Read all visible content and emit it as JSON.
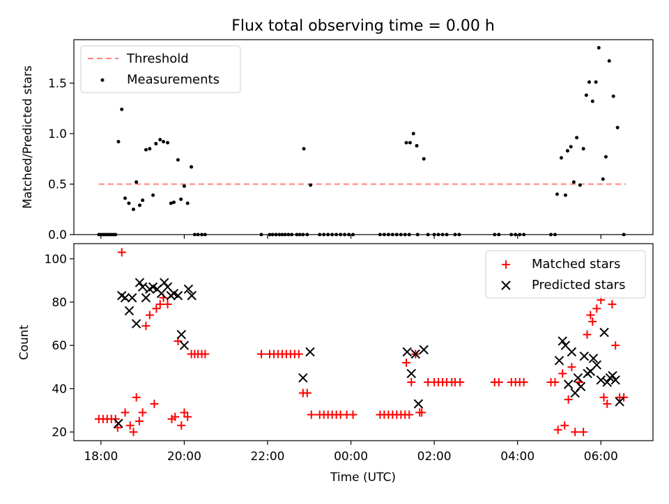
{
  "figure_title": "Flux total observing time = 0.00 h",
  "x_axis": {
    "label": "Time (UTC)",
    "range_hours": [
      17.35,
      31.25
    ],
    "tick_hours": [
      18,
      20,
      22,
      24,
      26,
      28,
      30
    ],
    "tick_labels": [
      "18:00",
      "20:00",
      "22:00",
      "00:00",
      "02:00",
      "04:00",
      "06:00"
    ]
  },
  "chart_data": [
    {
      "type": "scatter",
      "panel": "top",
      "ylabel": "Matched/Predicted stars",
      "ylim": [
        0,
        1.93
      ],
      "yticks": [
        0.0,
        0.5,
        1.0,
        1.5
      ],
      "ytick_labels": [
        "0.0",
        "0.5",
        "1.0",
        "1.5"
      ],
      "legend_position": "upper-left",
      "threshold": {
        "name": "Threshold",
        "value": 0.5,
        "x_range": [
          17.95,
          30.6
        ],
        "color": "#ff7f7f",
        "style": "dashed"
      },
      "series": [
        {
          "name": "Measurements",
          "color": "#000000",
          "points": [
            [
              17.95,
              0
            ],
            [
              18.0,
              0
            ],
            [
              18.05,
              0
            ],
            [
              18.1,
              0
            ],
            [
              18.15,
              0
            ],
            [
              18.2,
              0
            ],
            [
              18.25,
              0
            ],
            [
              18.3,
              0
            ],
            [
              18.35,
              0
            ],
            [
              18.42,
              0.92
            ],
            [
              18.5,
              1.24
            ],
            [
              18.58,
              0.36
            ],
            [
              18.67,
              0.31
            ],
            [
              18.78,
              0.25
            ],
            [
              18.85,
              0.52
            ],
            [
              18.93,
              0.29
            ],
            [
              19.0,
              0.34
            ],
            [
              19.08,
              0.84
            ],
            [
              19.17,
              0.85
            ],
            [
              19.25,
              0.39
            ],
            [
              19.32,
              0.9
            ],
            [
              19.42,
              0.94
            ],
            [
              19.5,
              0.92
            ],
            [
              19.6,
              0.91
            ],
            [
              19.68,
              0.31
            ],
            [
              19.75,
              0.32
            ],
            [
              19.85,
              0.74
            ],
            [
              19.92,
              0.35
            ],
            [
              20.0,
              0.48
            ],
            [
              20.08,
              0.31
            ],
            [
              20.17,
              0.67
            ],
            [
              20.25,
              0
            ],
            [
              20.33,
              0
            ],
            [
              20.42,
              0
            ],
            [
              20.5,
              0
            ],
            [
              21.85,
              0
            ],
            [
              22.05,
              0
            ],
            [
              22.12,
              0
            ],
            [
              22.2,
              0
            ],
            [
              22.28,
              0
            ],
            [
              22.35,
              0
            ],
            [
              22.42,
              0
            ],
            [
              22.5,
              0
            ],
            [
              22.58,
              0
            ],
            [
              22.7,
              0
            ],
            [
              22.77,
              0
            ],
            [
              22.85,
              0
            ],
            [
              22.87,
              0.85
            ],
            [
              22.95,
              0
            ],
            [
              23.03,
              0.49
            ],
            [
              23.25,
              0
            ],
            [
              23.35,
              0
            ],
            [
              23.45,
              0
            ],
            [
              23.55,
              0
            ],
            [
              23.65,
              0
            ],
            [
              23.75,
              0
            ],
            [
              23.85,
              0
            ],
            [
              23.95,
              0
            ],
            [
              24.05,
              0
            ],
            [
              24.7,
              0
            ],
            [
              24.8,
              0
            ],
            [
              24.9,
              0
            ],
            [
              25.0,
              0
            ],
            [
              25.1,
              0
            ],
            [
              25.2,
              0
            ],
            [
              25.3,
              0
            ],
            [
              25.4,
              0
            ],
            [
              25.33,
              0.91
            ],
            [
              25.42,
              0.91
            ],
            [
              25.5,
              1.0
            ],
            [
              25.58,
              0.88
            ],
            [
              25.6,
              0
            ],
            [
              25.75,
              0.75
            ],
            [
              25.85,
              0
            ],
            [
              26.0,
              0
            ],
            [
              26.1,
              0
            ],
            [
              26.2,
              0
            ],
            [
              26.3,
              0
            ],
            [
              26.5,
              0
            ],
            [
              26.6,
              0
            ],
            [
              27.45,
              0
            ],
            [
              27.55,
              0
            ],
            [
              27.85,
              0
            ],
            [
              27.95,
              0
            ],
            [
              28.05,
              0
            ],
            [
              28.15,
              0
            ],
            [
              28.8,
              0
            ],
            [
              28.9,
              0
            ],
            [
              28.95,
              0.4
            ],
            [
              29.05,
              0.76
            ],
            [
              29.15,
              0.39
            ],
            [
              29.2,
              0.83
            ],
            [
              29.28,
              0.87
            ],
            [
              29.35,
              0.52
            ],
            [
              29.42,
              0.96
            ],
            [
              29.5,
              0.49
            ],
            [
              29.58,
              0.85
            ],
            [
              29.65,
              1.38
            ],
            [
              29.72,
              1.51
            ],
            [
              29.8,
              1.32
            ],
            [
              29.88,
              1.51
            ],
            [
              29.95,
              1.85
            ],
            [
              30.05,
              0.55
            ],
            [
              30.12,
              0.77
            ],
            [
              30.2,
              1.72
            ],
            [
              30.3,
              1.37
            ],
            [
              30.4,
              1.06
            ],
            [
              30.55,
              0
            ]
          ]
        }
      ]
    },
    {
      "type": "scatter",
      "panel": "bottom",
      "ylabel": "Count",
      "ylim": [
        16,
        107
      ],
      "yticks": [
        20,
        40,
        60,
        80,
        100
      ],
      "ytick_labels": [
        "20",
        "40",
        "60",
        "80",
        "100"
      ],
      "legend_position": "upper-right",
      "series": [
        {
          "name": "Matched stars",
          "color": "#ff0000",
          "marker": "plus",
          "points": [
            [
              17.95,
              26
            ],
            [
              18.05,
              26
            ],
            [
              18.15,
              26
            ],
            [
              18.25,
              26
            ],
            [
              18.35,
              26
            ],
            [
              18.4,
              22
            ],
            [
              18.5,
              103
            ],
            [
              18.58,
              29
            ],
            [
              18.7,
              23
            ],
            [
              18.78,
              20
            ],
            [
              18.85,
              36
            ],
            [
              18.92,
              25
            ],
            [
              19.0,
              29
            ],
            [
              19.08,
              69
            ],
            [
              19.17,
              74
            ],
            [
              19.28,
              33
            ],
            [
              19.33,
              77
            ],
            [
              19.42,
              79
            ],
            [
              19.5,
              82
            ],
            [
              19.6,
              79
            ],
            [
              19.7,
              26
            ],
            [
              19.78,
              27
            ],
            [
              19.85,
              62
            ],
            [
              19.93,
              23
            ],
            [
              20.0,
              29
            ],
            [
              20.08,
              27
            ],
            [
              20.17,
              56
            ],
            [
              20.25,
              56
            ],
            [
              20.33,
              56
            ],
            [
              20.42,
              56
            ],
            [
              20.5,
              56
            ],
            [
              21.85,
              56
            ],
            [
              22.05,
              56
            ],
            [
              22.15,
              56
            ],
            [
              22.25,
              56
            ],
            [
              22.35,
              56
            ],
            [
              22.45,
              56
            ],
            [
              22.55,
              56
            ],
            [
              22.65,
              56
            ],
            [
              22.75,
              56
            ],
            [
              22.85,
              38
            ],
            [
              22.95,
              38
            ],
            [
              23.05,
              28
            ],
            [
              23.25,
              28
            ],
            [
              23.35,
              28
            ],
            [
              23.45,
              28
            ],
            [
              23.55,
              28
            ],
            [
              23.65,
              28
            ],
            [
              23.75,
              28
            ],
            [
              23.9,
              28
            ],
            [
              24.05,
              28
            ],
            [
              24.7,
              28
            ],
            [
              24.8,
              28
            ],
            [
              24.9,
              28
            ],
            [
              25.0,
              28
            ],
            [
              25.1,
              28
            ],
            [
              25.2,
              28
            ],
            [
              25.3,
              28
            ],
            [
              25.4,
              28
            ],
            [
              25.33,
              52
            ],
            [
              25.45,
              43
            ],
            [
              25.55,
              56
            ],
            [
              25.65,
              29
            ],
            [
              25.7,
              29
            ],
            [
              25.85,
              43
            ],
            [
              26.0,
              43
            ],
            [
              26.1,
              43
            ],
            [
              26.2,
              43
            ],
            [
              26.3,
              43
            ],
            [
              26.42,
              43
            ],
            [
              26.5,
              43
            ],
            [
              26.62,
              43
            ],
            [
              27.45,
              43
            ],
            [
              27.55,
              43
            ],
            [
              27.85,
              43
            ],
            [
              27.95,
              43
            ],
            [
              28.05,
              43
            ],
            [
              28.15,
              43
            ],
            [
              28.8,
              43
            ],
            [
              28.9,
              43
            ],
            [
              28.97,
              21
            ],
            [
              29.08,
              47
            ],
            [
              29.13,
              23
            ],
            [
              29.22,
              35
            ],
            [
              29.3,
              50
            ],
            [
              29.38,
              20
            ],
            [
              29.48,
              43
            ],
            [
              29.58,
              20
            ],
            [
              29.67,
              65
            ],
            [
              29.75,
              74
            ],
            [
              29.8,
              71
            ],
            [
              29.9,
              77
            ],
            [
              30.0,
              81
            ],
            [
              30.07,
              36
            ],
            [
              30.15,
              33
            ],
            [
              30.27,
              79
            ],
            [
              30.35,
              60
            ],
            [
              30.45,
              36
            ],
            [
              30.55,
              36
            ]
          ]
        },
        {
          "name": "Predicted stars",
          "color": "#000000",
          "marker": "x",
          "points": [
            [
              18.42,
              24
            ],
            [
              18.5,
              83
            ],
            [
              18.58,
              82
            ],
            [
              18.68,
              76
            ],
            [
              18.75,
              82
            ],
            [
              18.85,
              70
            ],
            [
              18.93,
              89
            ],
            [
              19.0,
              87
            ],
            [
              19.08,
              82
            ],
            [
              19.17,
              86
            ],
            [
              19.25,
              87
            ],
            [
              19.35,
              86
            ],
            [
              19.45,
              84
            ],
            [
              19.52,
              89
            ],
            [
              19.6,
              87
            ],
            [
              19.68,
              83
            ],
            [
              19.75,
              84
            ],
            [
              19.85,
              83
            ],
            [
              19.93,
              65
            ],
            [
              20.0,
              60
            ],
            [
              20.1,
              86
            ],
            [
              20.18,
              83
            ],
            [
              22.85,
              45
            ],
            [
              23.02,
              57
            ],
            [
              25.35,
              57
            ],
            [
              25.45,
              47
            ],
            [
              25.55,
              56
            ],
            [
              25.62,
              33
            ],
            [
              25.75,
              58
            ],
            [
              29.0,
              53
            ],
            [
              29.08,
              62
            ],
            [
              29.15,
              60
            ],
            [
              29.22,
              42
            ],
            [
              29.3,
              57
            ],
            [
              29.38,
              38
            ],
            [
              29.45,
              45
            ],
            [
              29.52,
              41
            ],
            [
              29.6,
              55
            ],
            [
              29.68,
              47
            ],
            [
              29.75,
              48
            ],
            [
              29.82,
              54
            ],
            [
              29.9,
              51
            ],
            [
              30.0,
              44
            ],
            [
              30.08,
              66
            ],
            [
              30.15,
              43
            ],
            [
              30.22,
              45
            ],
            [
              30.28,
              46
            ],
            [
              30.35,
              44
            ],
            [
              30.45,
              34
            ]
          ]
        }
      ]
    }
  ]
}
